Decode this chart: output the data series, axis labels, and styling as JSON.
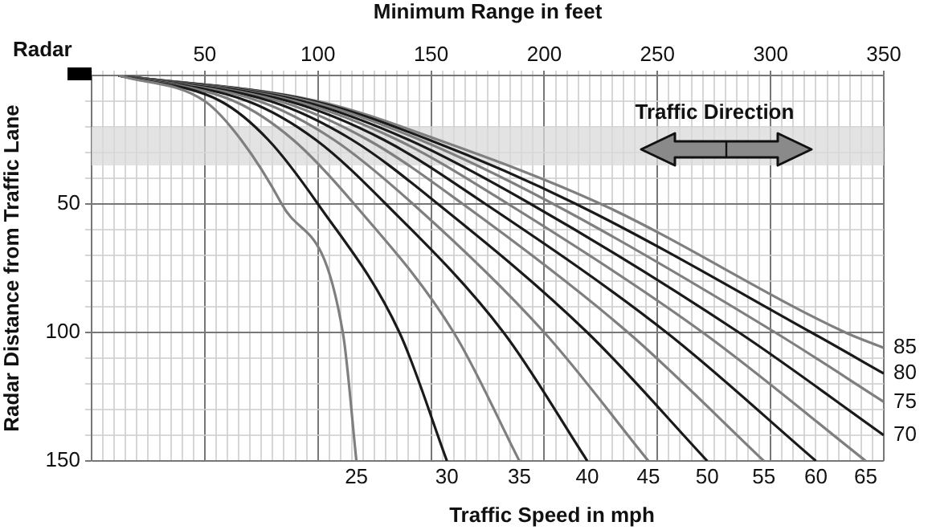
{
  "chart_data": {
    "type": "line",
    "xlabel": "Minimum Range in feet",
    "ylabel": "Radar Distance from Traffic Lane",
    "legend_title": "Traffic Speed in mph",
    "annotations": [
      "Radar"
    ],
    "xlim": [
      0,
      350
    ],
    "ylim": [
      150,
      0
    ],
    "xticks": [
      {
        "value": 0,
        "label": null
      },
      {
        "value": 5,
        "label": null
      },
      {
        "value": 10,
        "label": null
      },
      {
        "value": 15,
        "label": null
      },
      {
        "value": 20,
        "label": null
      },
      {
        "value": 25,
        "label": null
      },
      {
        "value": 30,
        "label": null
      },
      {
        "value": 35,
        "label": null
      },
      {
        "value": 40,
        "label": null
      },
      {
        "value": 45,
        "label": null
      },
      50,
      {
        "value": 55,
        "label": null
      },
      {
        "value": 60,
        "label": null
      },
      {
        "value": 65,
        "label": null
      },
      {
        "value": 70,
        "label": null
      },
      {
        "value": 75,
        "label": null
      },
      {
        "value": 80,
        "label": null
      },
      {
        "value": 85,
        "label": null
      },
      {
        "value": 90,
        "label": null
      },
      {
        "value": 95,
        "label": null
      },
      100,
      {
        "value": 105,
        "label": null
      },
      {
        "value": 110,
        "label": null
      },
      {
        "value": 115,
        "label": null
      },
      {
        "value": 120,
        "label": null
      },
      {
        "value": 125,
        "label": null
      },
      {
        "value": 130,
        "label": null
      },
      {
        "value": 135,
        "label": null
      },
      {
        "value": 140,
        "label": null
      },
      {
        "value": 145,
        "label": null
      },
      150,
      {
        "value": 155,
        "label": null
      },
      {
        "value": 160,
        "label": null
      },
      {
        "value": 165,
        "label": null
      },
      {
        "value": 170,
        "label": null
      },
      {
        "value": 175,
        "label": null
      },
      {
        "value": 180,
        "label": null
      },
      {
        "value": 185,
        "label": null
      },
      {
        "value": 190,
        "label": null
      },
      {
        "value": 195,
        "label": null
      },
      200,
      {
        "value": 205,
        "label": null
      },
      {
        "value": 210,
        "label": null
      },
      {
        "value": 215,
        "label": null
      },
      {
        "value": 220,
        "label": null
      },
      {
        "value": 225,
        "label": null
      },
      {
        "value": 230,
        "label": null
      },
      {
        "value": 235,
        "label": null
      },
      {
        "value": 240,
        "label": null
      },
      {
        "value": 245,
        "label": null
      },
      250,
      {
        "value": 255,
        "label": null
      },
      {
        "value": 260,
        "label": null
      },
      {
        "value": 265,
        "label": null
      },
      {
        "value": 270,
        "label": null
      },
      {
        "value": 275,
        "label": null
      },
      {
        "value": 280,
        "label": null
      },
      {
        "value": 285,
        "label": null
      },
      {
        "value": 290,
        "label": null
      },
      {
        "value": 295,
        "label": null
      },
      300,
      {
        "value": 305,
        "label": null
      },
      {
        "value": 310,
        "label": null
      },
      {
        "value": 315,
        "label": null
      },
      {
        "value": 320,
        "label": null
      },
      {
        "value": 325,
        "label": null
      },
      {
        "value": 330,
        "label": null
      },
      {
        "value": 335,
        "label": null
      },
      {
        "value": 340,
        "label": null
      },
      {
        "value": 345,
        "label": null
      },
      350
    ],
    "yticks": [
      {
        "value": 0,
        "label": null
      },
      {
        "value": 10,
        "label": null
      },
      {
        "value": 20,
        "label": null
      },
      {
        "value": 30,
        "label": null
      },
      {
        "value": 40,
        "label": null
      },
      50,
      {
        "value": 60,
        "label": null
      },
      {
        "value": 70,
        "label": null
      },
      {
        "value": 80,
        "label": null
      },
      {
        "value": 90,
        "label": null
      },
      100,
      {
        "value": 110,
        "label": null
      },
      {
        "value": 120,
        "label": null
      },
      {
        "value": 130,
        "label": null
      },
      {
        "value": 140,
        "label": null
      },
      150
    ],
    "grid": true,
    "legend": false,
    "marker": "none",
    "line_style": "solid",
    "bands": [
      {
        "axis": "y",
        "from": 20,
        "to": 35,
        "label": "Traffic Direction",
        "color": "#d9d9d9"
      }
    ],
    "series": [
      {
        "name": "25",
        "color": "#7f7f7f",
        "x": [
          12,
          50,
          66,
          84,
          111,
          117
        ],
        "values": [
          0,
          10,
          25,
          50,
          100,
          150
        ]
      },
      {
        "name": "30",
        "color": "#1a1a1a",
        "x": [
          12,
          57,
          78,
          100,
          136,
          157
        ],
        "values": [
          0,
          10,
          25,
          50,
          100,
          150
        ]
      },
      {
        "name": "35",
        "color": "#7f7f7f",
        "x": [
          12,
          63,
          89,
          116,
          160,
          189
        ],
        "values": [
          0,
          10,
          25,
          50,
          100,
          150
        ]
      },
      {
        "name": "40",
        "color": "#1a1a1a",
        "x": [
          12,
          69,
          99,
          130,
          182,
          219
        ],
        "values": [
          0,
          10,
          25,
          50,
          100,
          150
        ]
      },
      {
        "name": "45",
        "color": "#7f7f7f",
        "x": [
          12,
          74,
          107,
          142,
          200,
          246
        ],
        "values": [
          0,
          10,
          25,
          50,
          100,
          150
        ]
      },
      {
        "name": "50",
        "color": "#1a1a1a",
        "x": [
          12,
          79,
          115,
          153,
          219,
          272
        ],
        "values": [
          0,
          10,
          25,
          50,
          100,
          150
        ]
      },
      {
        "name": "55",
        "color": "#7f7f7f",
        "x": [
          12,
          83,
          122,
          164,
          237,
          297
        ],
        "values": [
          0,
          10,
          25,
          50,
          100,
          150
        ]
      },
      {
        "name": "60",
        "color": "#1a1a1a",
        "x": [
          12,
          87,
          129,
          174,
          254,
          320
        ],
        "values": [
          0,
          10,
          25,
          50,
          100,
          150
        ]
      },
      {
        "name": "65",
        "color": "#7f7f7f",
        "x": [
          12,
          90,
          135,
          184,
          270,
          342
        ],
        "values": [
          0,
          10,
          25,
          50,
          100,
          150
        ]
      },
      {
        "name": "70",
        "color": "#1a1a1a",
        "x": [
          12,
          93,
          140,
          194,
          286,
          350
        ],
        "values": [
          0,
          10,
          25,
          50,
          100,
          140
        ]
      },
      {
        "name": "75",
        "color": "#7f7f7f",
        "x": [
          12,
          96,
          145,
          204,
          302,
          350
        ],
        "values": [
          0,
          10,
          25,
          50,
          100,
          127
        ]
      },
      {
        "name": "80",
        "color": "#1a1a1a",
        "x": [
          12,
          98,
          149,
          214,
          318,
          350
        ],
        "values": [
          0,
          10,
          25,
          50,
          100,
          116
        ]
      },
      {
        "name": "85",
        "color": "#7f7f7f",
        "x": [
          12,
          100,
          153,
          225,
          333,
          350
        ],
        "values": [
          0,
          10,
          25,
          50,
          100,
          106
        ]
      }
    ]
  }
}
